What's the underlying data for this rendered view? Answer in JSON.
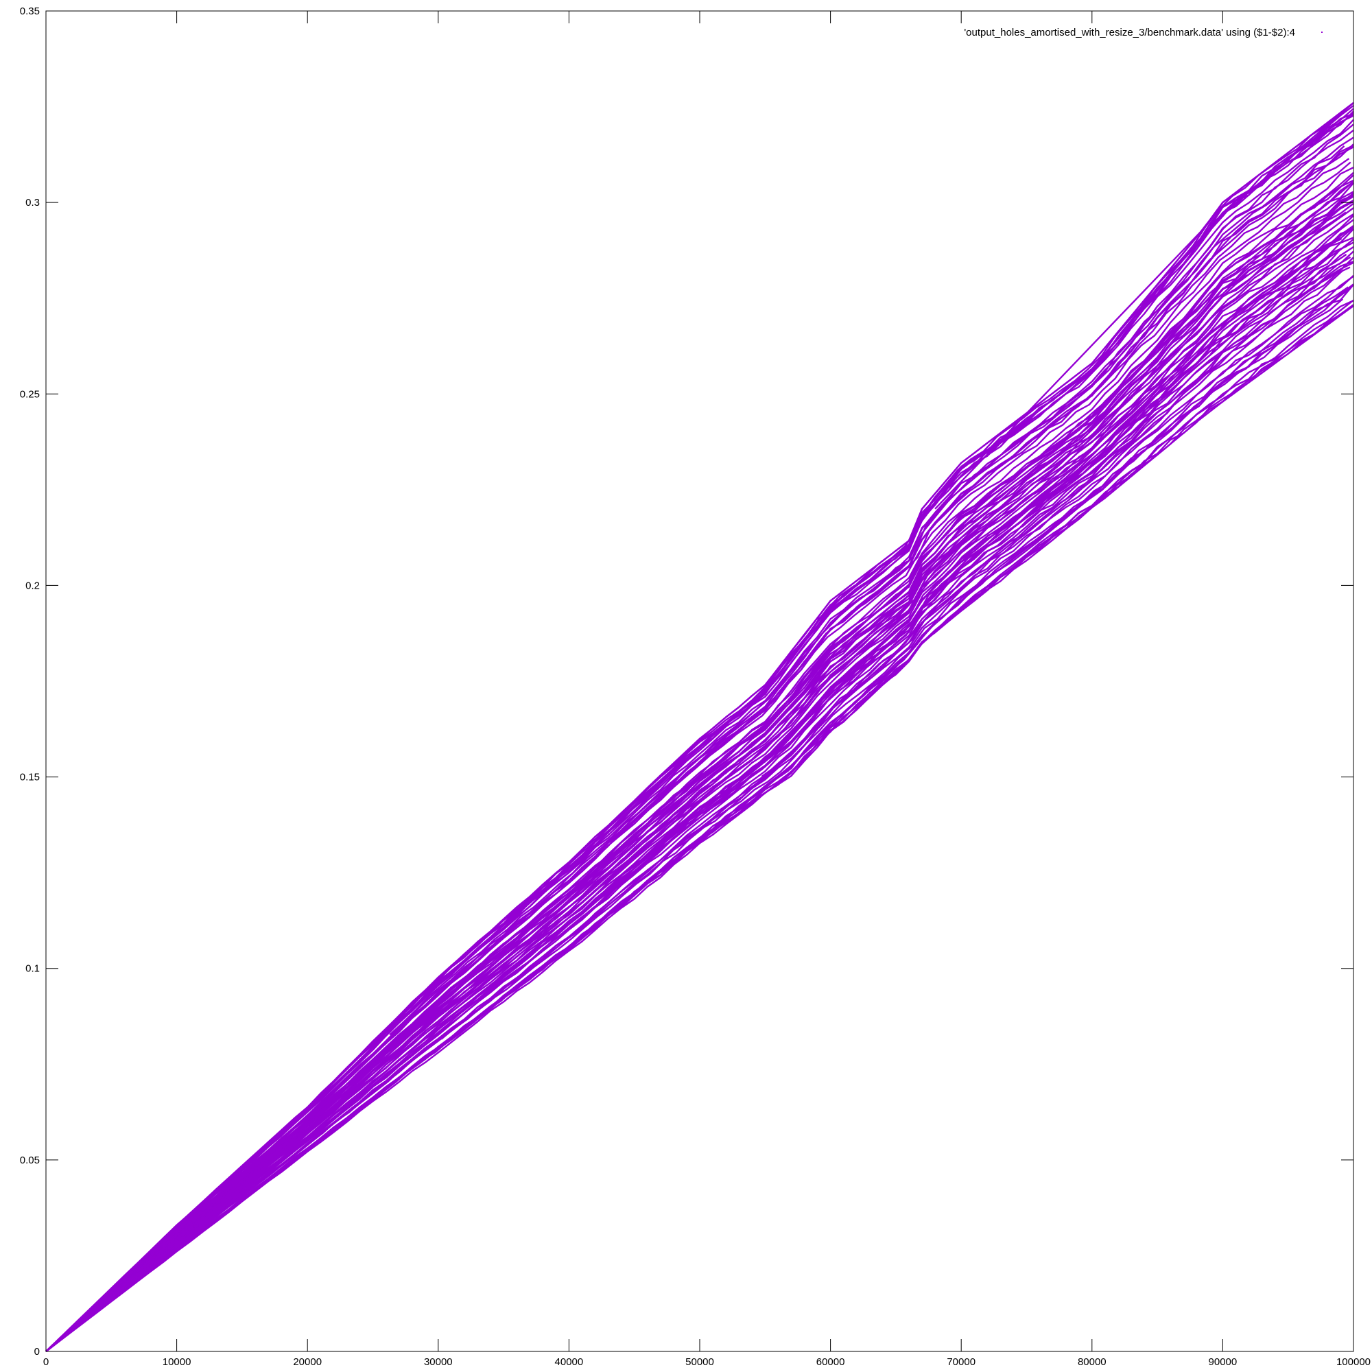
{
  "chart_data": {
    "type": "scatter",
    "title": "",
    "xlabel": "",
    "ylabel": "",
    "xlim": [
      0,
      100000
    ],
    "ylim": [
      0,
      0.35
    ],
    "x_ticks": [
      {
        "value": 0,
        "label": "0"
      },
      {
        "value": 10000,
        "label": "10000"
      },
      {
        "value": 20000,
        "label": "20000"
      },
      {
        "value": 30000,
        "label": "30000"
      },
      {
        "value": 40000,
        "label": "40000"
      },
      {
        "value": 50000,
        "label": "50000"
      },
      {
        "value": 60000,
        "label": "60000"
      },
      {
        "value": 70000,
        "label": "70000"
      },
      {
        "value": 80000,
        "label": "80000"
      },
      {
        "value": 90000,
        "label": "90000"
      },
      {
        "value": 100000,
        "label": "100000"
      }
    ],
    "y_ticks": [
      {
        "value": 0,
        "label": "0"
      },
      {
        "value": 0.05,
        "label": "0.05"
      },
      {
        "value": 0.1,
        "label": "0.1"
      },
      {
        "value": 0.15,
        "label": "0.15"
      },
      {
        "value": 0.2,
        "label": "0.2"
      },
      {
        "value": 0.25,
        "label": "0.25"
      },
      {
        "value": 0.3,
        "label": "0.3"
      },
      {
        "value": 0.35,
        "label": "0.35"
      }
    ],
    "grid": false,
    "legend_position": "top-right",
    "series_color": "#9400d3",
    "series": [
      {
        "name": "'output_holes_amortised_with_resize_3/benchmark.data' using ($1-$2):4",
        "envelope_upper": [
          [
            0,
            0
          ],
          [
            10000,
            0.033
          ],
          [
            20000,
            0.064
          ],
          [
            30000,
            0.098
          ],
          [
            40000,
            0.128
          ],
          [
            50000,
            0.16
          ],
          [
            55000,
            0.174
          ],
          [
            60000,
            0.196
          ],
          [
            66500,
            0.213
          ],
          [
            67000,
            0.22
          ],
          [
            70000,
            0.232
          ],
          [
            80000,
            0.258
          ],
          [
            88500,
            0.293
          ],
          [
            90000,
            0.3
          ],
          [
            100000,
            0.326
          ]
        ],
        "envelope_lower": [
          [
            0,
            0
          ],
          [
            10000,
            0.026
          ],
          [
            20000,
            0.052
          ],
          [
            30000,
            0.078
          ],
          [
            40000,
            0.104
          ],
          [
            50000,
            0.132
          ],
          [
            57000,
            0.15
          ],
          [
            60000,
            0.161
          ],
          [
            66500,
            0.181
          ],
          [
            67000,
            0.184
          ],
          [
            70000,
            0.193
          ],
          [
            80000,
            0.22
          ],
          [
            88500,
            0.244
          ],
          [
            90000,
            0.248
          ],
          [
            100000,
            0.273
          ]
        ],
        "outlier_segments": [
          [
            [
              9000,
              0.0295
            ],
            [
              20000,
              0.063
            ]
          ],
          [
            [
              59000,
              0.191
            ],
            [
              63500,
              0.205
            ]
          ],
          [
            [
              68000,
              0.22
            ],
            [
              88500,
              0.293
            ]
          ],
          [
            [
              89000,
              0.294
            ],
            [
              100000,
              0.326
            ]
          ]
        ]
      }
    ]
  }
}
